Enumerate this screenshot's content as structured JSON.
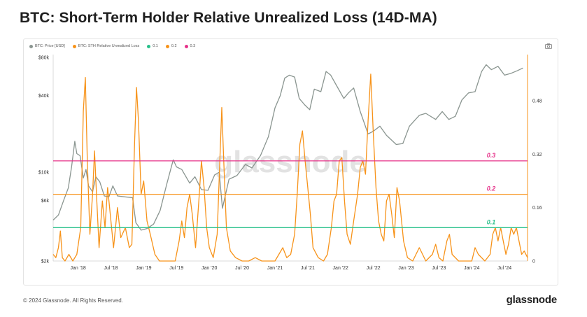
{
  "title": "BTC: Short-Term Holder Relative Unrealized Loss (14D-MA)",
  "footer": {
    "copyright": "© 2024 Glassnode. All Rights Reserved.",
    "brand": "glassnode"
  },
  "watermark": "glassnode",
  "colors": {
    "price": "#8a9590",
    "loss": "#f7931a",
    "l01": "#28c08a",
    "l02": "#f7931a",
    "l03": "#e6338a"
  },
  "chart_data": {
    "type": "line",
    "legend": [
      {
        "name": "BTC: Price [USD]",
        "color": "#8a9590"
      },
      {
        "name": "BTC: STH Relative Unrealized Loss",
        "color": "#f7931a"
      },
      {
        "name": "0.1",
        "color": "#28c08a"
      },
      {
        "name": "0.2",
        "color": "#f7931a"
      },
      {
        "name": "0.3",
        "color": "#e6338a"
      }
    ],
    "x_ticks": [
      "Jan '18",
      "Jul '18",
      "Jan '19",
      "Jul '19",
      "Jan '20",
      "Jul '20",
      "Jan '21",
      "Jul '21",
      "Jan '22",
      "Jul '22",
      "Jan '23",
      "Jul '23",
      "Jan '24",
      "Jul '24"
    ],
    "x_range": [
      2017.62,
      2024.85
    ],
    "y_left": {
      "scale": "log",
      "ticks": [
        "$2k",
        "$6k",
        "$10k",
        "$40k",
        "$80k"
      ],
      "tick_values": [
        2000,
        6000,
        10000,
        40000,
        80000
      ],
      "range": [
        2000,
        80000
      ]
    },
    "y_right": {
      "scale": "linear",
      "ticks": [
        "0",
        "0.16",
        "0.32",
        "0.48"
      ],
      "tick_values": [
        0,
        0.16,
        0.32,
        0.48
      ],
      "range": [
        0,
        0.61
      ]
    },
    "levels": [
      {
        "label": "0.1",
        "value": 0.1,
        "color": "#28c08a"
      },
      {
        "label": "0.2",
        "value": 0.2,
        "color": "#f7931a"
      },
      {
        "label": "0.3",
        "value": 0.3,
        "color": "#e6338a"
      }
    ],
    "series": [
      {
        "name": "BTC: Price [USD]",
        "axis": "left",
        "points": [
          [
            2017.62,
            4200
          ],
          [
            2017.7,
            4600
          ],
          [
            2017.78,
            6000
          ],
          [
            2017.85,
            7500
          ],
          [
            2017.9,
            11000
          ],
          [
            2017.95,
            17500
          ],
          [
            2017.98,
            14000
          ],
          [
            2018.03,
            13500
          ],
          [
            2018.08,
            9000
          ],
          [
            2018.12,
            10500
          ],
          [
            2018.16,
            7800
          ],
          [
            2018.22,
            7000
          ],
          [
            2018.27,
            9200
          ],
          [
            2018.33,
            8400
          ],
          [
            2018.4,
            6500
          ],
          [
            2018.47,
            6400
          ],
          [
            2018.53,
            7800
          ],
          [
            2018.6,
            6500
          ],
          [
            2018.7,
            6400
          ],
          [
            2018.83,
            6300
          ],
          [
            2018.88,
            4000
          ],
          [
            2018.96,
            3500
          ],
          [
            2019.05,
            3600
          ],
          [
            2019.15,
            3900
          ],
          [
            2019.25,
            5000
          ],
          [
            2019.35,
            8000
          ],
          [
            2019.45,
            12500
          ],
          [
            2019.5,
            11000
          ],
          [
            2019.58,
            10500
          ],
          [
            2019.7,
            8200
          ],
          [
            2019.78,
            9200
          ],
          [
            2019.88,
            7300
          ],
          [
            2019.98,
            7200
          ],
          [
            2020.08,
            9500
          ],
          [
            2020.15,
            10000
          ],
          [
            2020.2,
            5200
          ],
          [
            2020.3,
            8800
          ],
          [
            2020.42,
            9400
          ],
          [
            2020.55,
            11500
          ],
          [
            2020.65,
            10800
          ],
          [
            2020.78,
            13500
          ],
          [
            2020.9,
            19000
          ],
          [
            2021.0,
            32000
          ],
          [
            2021.08,
            40000
          ],
          [
            2021.15,
            55000
          ],
          [
            2021.22,
            58000
          ],
          [
            2021.3,
            56000
          ],
          [
            2021.37,
            38000
          ],
          [
            2021.45,
            34000
          ],
          [
            2021.53,
            31000
          ],
          [
            2021.6,
            45000
          ],
          [
            2021.7,
            43000
          ],
          [
            2021.78,
            62000
          ],
          [
            2021.85,
            58000
          ],
          [
            2021.95,
            47000
          ],
          [
            2022.05,
            38000
          ],
          [
            2022.12,
            42000
          ],
          [
            2022.2,
            46000
          ],
          [
            2022.3,
            30000
          ],
          [
            2022.42,
            20000
          ],
          [
            2022.5,
            21000
          ],
          [
            2022.6,
            23000
          ],
          [
            2022.7,
            19500
          ],
          [
            2022.85,
            16500
          ],
          [
            2022.95,
            16800
          ],
          [
            2023.05,
            23000
          ],
          [
            2023.2,
            28000
          ],
          [
            2023.3,
            29000
          ],
          [
            2023.45,
            26000
          ],
          [
            2023.55,
            30000
          ],
          [
            2023.65,
            26000
          ],
          [
            2023.75,
            27500
          ],
          [
            2023.85,
            37000
          ],
          [
            2023.95,
            42000
          ],
          [
            2024.05,
            43000
          ],
          [
            2024.15,
            62000
          ],
          [
            2024.22,
            70000
          ],
          [
            2024.3,
            64000
          ],
          [
            2024.4,
            68000
          ],
          [
            2024.5,
            58000
          ],
          [
            2024.6,
            60000
          ],
          [
            2024.7,
            63000
          ],
          [
            2024.78,
            66000
          ]
        ]
      },
      {
        "name": "BTC: STH Relative Unrealized Loss",
        "axis": "right",
        "points": [
          [
            2017.62,
            0.02
          ],
          [
            2017.66,
            0.01
          ],
          [
            2017.7,
            0.04
          ],
          [
            2017.73,
            0.09
          ],
          [
            2017.76,
            0.01
          ],
          [
            2017.8,
            0.0
          ],
          [
            2017.86,
            0.02
          ],
          [
            2017.92,
            0.0
          ],
          [
            2017.98,
            0.02
          ],
          [
            2018.04,
            0.1
          ],
          [
            2018.08,
            0.45
          ],
          [
            2018.11,
            0.55
          ],
          [
            2018.14,
            0.3
          ],
          [
            2018.18,
            0.08
          ],
          [
            2018.22,
            0.2
          ],
          [
            2018.25,
            0.33
          ],
          [
            2018.28,
            0.2
          ],
          [
            2018.32,
            0.04
          ],
          [
            2018.37,
            0.18
          ],
          [
            2018.41,
            0.1
          ],
          [
            2018.45,
            0.22
          ],
          [
            2018.49,
            0.14
          ],
          [
            2018.54,
            0.04
          ],
          [
            2018.6,
            0.16
          ],
          [
            2018.65,
            0.07
          ],
          [
            2018.72,
            0.1
          ],
          [
            2018.78,
            0.04
          ],
          [
            2018.82,
            0.05
          ],
          [
            2018.86,
            0.35
          ],
          [
            2018.89,
            0.52
          ],
          [
            2018.92,
            0.42
          ],
          [
            2018.96,
            0.2
          ],
          [
            2019.0,
            0.24
          ],
          [
            2019.05,
            0.12
          ],
          [
            2019.1,
            0.08
          ],
          [
            2019.17,
            0.02
          ],
          [
            2019.24,
            0.0
          ],
          [
            2019.33,
            0.0
          ],
          [
            2019.4,
            0.0
          ],
          [
            2019.48,
            0.0
          ],
          [
            2019.54,
            0.06
          ],
          [
            2019.58,
            0.12
          ],
          [
            2019.62,
            0.07
          ],
          [
            2019.66,
            0.16
          ],
          [
            2019.7,
            0.2
          ],
          [
            2019.74,
            0.14
          ],
          [
            2019.79,
            0.04
          ],
          [
            2019.84,
            0.18
          ],
          [
            2019.88,
            0.3
          ],
          [
            2019.92,
            0.22
          ],
          [
            2019.96,
            0.1
          ],
          [
            2020.0,
            0.04
          ],
          [
            2020.06,
            0.01
          ],
          [
            2020.12,
            0.08
          ],
          [
            2020.16,
            0.3
          ],
          [
            2020.19,
            0.46
          ],
          [
            2020.22,
            0.3
          ],
          [
            2020.26,
            0.1
          ],
          [
            2020.32,
            0.03
          ],
          [
            2020.4,
            0.01
          ],
          [
            2020.5,
            0.0
          ],
          [
            2020.6,
            0.0
          ],
          [
            2020.7,
            0.01
          ],
          [
            2020.8,
            0.0
          ],
          [
            2020.9,
            0.0
          ],
          [
            2021.0,
            0.0
          ],
          [
            2021.06,
            0.02
          ],
          [
            2021.12,
            0.04
          ],
          [
            2021.18,
            0.01
          ],
          [
            2021.24,
            0.02
          ],
          [
            2021.3,
            0.08
          ],
          [
            2021.34,
            0.2
          ],
          [
            2021.38,
            0.35
          ],
          [
            2021.42,
            0.39
          ],
          [
            2021.46,
            0.3
          ],
          [
            2021.5,
            0.22
          ],
          [
            2021.54,
            0.14
          ],
          [
            2021.58,
            0.04
          ],
          [
            2021.66,
            0.01
          ],
          [
            2021.74,
            0.0
          ],
          [
            2021.8,
            0.02
          ],
          [
            2021.86,
            0.1
          ],
          [
            2021.9,
            0.18
          ],
          [
            2021.94,
            0.2
          ],
          [
            2021.98,
            0.3
          ],
          [
            2022.02,
            0.31
          ],
          [
            2022.06,
            0.18
          ],
          [
            2022.1,
            0.08
          ],
          [
            2022.15,
            0.05
          ],
          [
            2022.2,
            0.12
          ],
          [
            2022.26,
            0.2
          ],
          [
            2022.3,
            0.28
          ],
          [
            2022.34,
            0.3
          ],
          [
            2022.38,
            0.26
          ],
          [
            2022.42,
            0.42
          ],
          [
            2022.46,
            0.56
          ],
          [
            2022.5,
            0.38
          ],
          [
            2022.54,
            0.22
          ],
          [
            2022.58,
            0.12
          ],
          [
            2022.62,
            0.08
          ],
          [
            2022.66,
            0.06
          ],
          [
            2022.7,
            0.18
          ],
          [
            2022.74,
            0.2
          ],
          [
            2022.78,
            0.14
          ],
          [
            2022.82,
            0.07
          ],
          [
            2022.86,
            0.22
          ],
          [
            2022.9,
            0.18
          ],
          [
            2022.96,
            0.06
          ],
          [
            2023.02,
            0.01
          ],
          [
            2023.1,
            0.0
          ],
          [
            2023.2,
            0.04
          ],
          [
            2023.25,
            0.02
          ],
          [
            2023.3,
            0.0
          ],
          [
            2023.4,
            0.02
          ],
          [
            2023.45,
            0.05
          ],
          [
            2023.5,
            0.01
          ],
          [
            2023.56,
            0.0
          ],
          [
            2023.62,
            0.06
          ],
          [
            2023.66,
            0.08
          ],
          [
            2023.7,
            0.02
          ],
          [
            2023.8,
            0.0
          ],
          [
            2023.9,
            0.0
          ],
          [
            2024.0,
            0.0
          ],
          [
            2024.05,
            0.04
          ],
          [
            2024.1,
            0.02
          ],
          [
            2024.2,
            0.0
          ],
          [
            2024.28,
            0.02
          ],
          [
            2024.32,
            0.08
          ],
          [
            2024.36,
            0.1
          ],
          [
            2024.4,
            0.06
          ],
          [
            2024.44,
            0.1
          ],
          [
            2024.48,
            0.06
          ],
          [
            2024.52,
            0.02
          ],
          [
            2024.56,
            0.05
          ],
          [
            2024.6,
            0.1
          ],
          [
            2024.64,
            0.08
          ],
          [
            2024.68,
            0.1
          ],
          [
            2024.72,
            0.06
          ],
          [
            2024.76,
            0.02
          ],
          [
            2024.8,
            0.03
          ],
          [
            2024.85,
            0.01
          ]
        ]
      }
    ]
  }
}
